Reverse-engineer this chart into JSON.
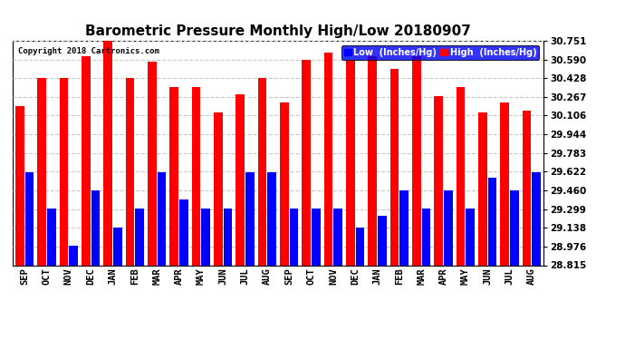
{
  "title": "Barometric Pressure Monthly High/Low 20180907",
  "copyright": "Copyright 2018 Cartronics.com",
  "months": [
    "SEP",
    "OCT",
    "NOV",
    "DEC",
    "JAN",
    "FEB",
    "MAR",
    "APR",
    "MAY",
    "JUN",
    "JUL",
    "AUG",
    "SEP",
    "OCT",
    "NOV",
    "DEC",
    "JAN",
    "FEB",
    "MAR",
    "APR",
    "MAY",
    "JUN",
    "JUL",
    "AUG"
  ],
  "high_values": [
    30.19,
    30.43,
    30.43,
    30.62,
    30.75,
    30.43,
    30.57,
    30.35,
    30.35,
    30.13,
    30.29,
    30.43,
    30.22,
    30.59,
    30.65,
    30.59,
    30.62,
    30.51,
    30.62,
    30.27,
    30.35,
    30.13,
    30.22,
    30.15
  ],
  "low_values": [
    29.62,
    29.3,
    28.98,
    29.46,
    29.14,
    29.3,
    29.62,
    29.38,
    29.3,
    29.3,
    29.62,
    29.62,
    29.3,
    29.3,
    29.3,
    29.14,
    29.24,
    29.46,
    29.3,
    29.46,
    29.3,
    29.57,
    29.46,
    29.62
  ],
  "high_color": "#ff0000",
  "low_color": "#0000ff",
  "bg_color": "#ffffff",
  "plot_bg_color": "#ffffff",
  "grid_color": "#c8c8c8",
  "title_fontsize": 11,
  "yticks": [
    28.815,
    28.976,
    29.138,
    29.299,
    29.46,
    29.622,
    29.783,
    29.944,
    30.106,
    30.267,
    30.428,
    30.59,
    30.751
  ],
  "ylim_min": 28.815,
  "ylim_max": 30.751,
  "legend_low_label": "Low  (Inches/Hg)",
  "legend_high_label": "High  (Inches/Hg)"
}
